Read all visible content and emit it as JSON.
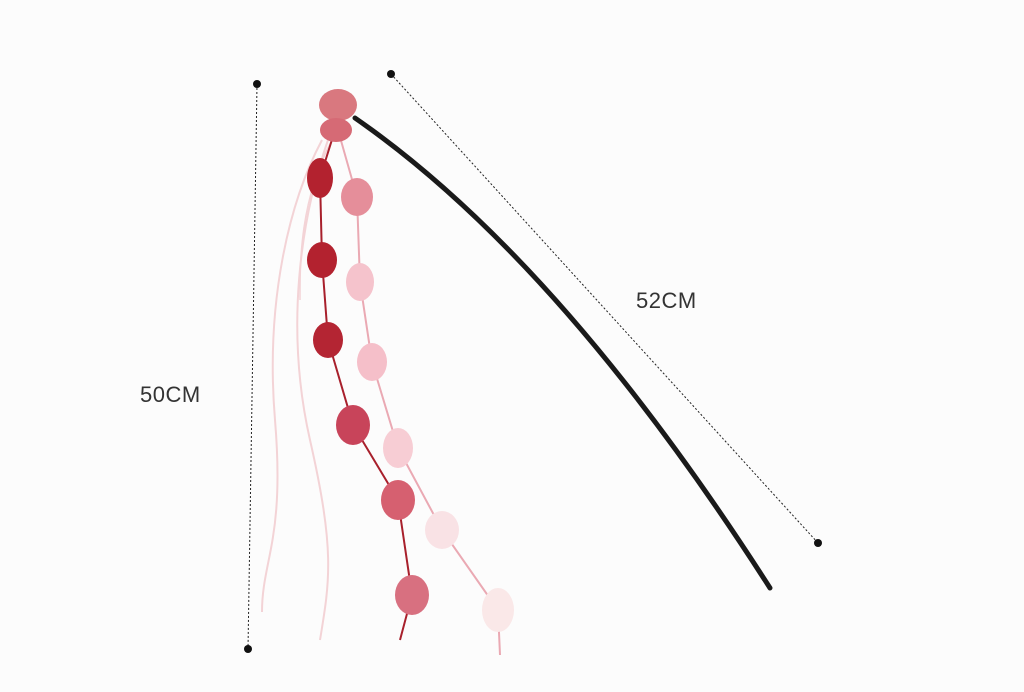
{
  "product": {
    "height_label": "50CM",
    "length_label": "52CM"
  },
  "colors": {
    "wand": "#1a1a1a",
    "dark_pompom": "#b3222f",
    "light_pompom": "#f5c3cc",
    "string": "#f3d3d6",
    "guide": "#222222"
  }
}
